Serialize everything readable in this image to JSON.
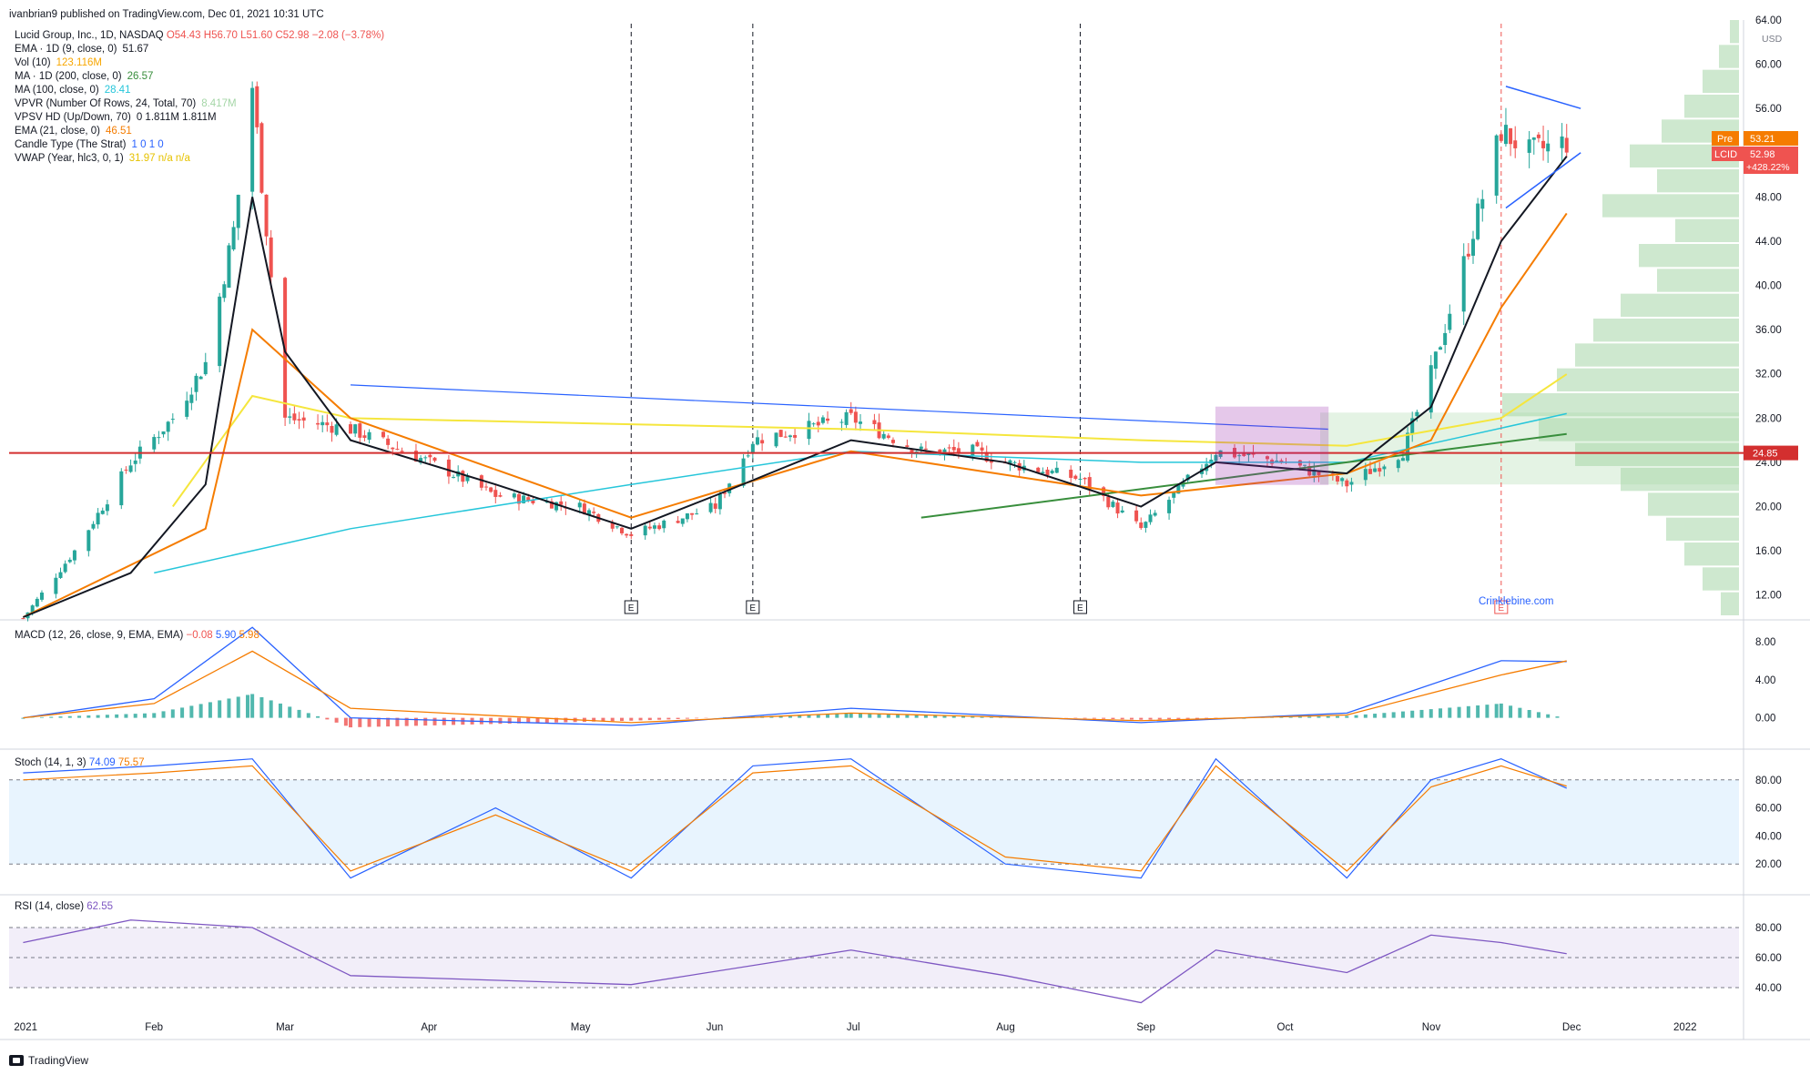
{
  "header": {
    "publisher_line": "ivanbrian9 published on TradingView.com, Dec 01, 2021 10:31 UTC"
  },
  "legend": {
    "symbol_line": {
      "label": "Lucid Group, Inc., 1D, NASDAQ",
      "o": "O54.43",
      "h": "H56.70",
      "l": "L51.60",
      "c": "C52.98",
      "chg": "−2.08 (−3.78%)"
    },
    "lines": [
      {
        "label": "EMA · 1D (9, close, 0)",
        "value": "51.67",
        "color": "#131722"
      },
      {
        "label": "Vol (10)",
        "value": "123.116M",
        "color": "#f7a600"
      },
      {
        "label": "MA · 1D (200, close, 0)",
        "value": "26.57",
        "color": "#388e3c"
      },
      {
        "label": "MA (100, close, 0)",
        "value": "28.41",
        "color": "#26c6da"
      },
      {
        "label": "VPVR (Number Of Rows, 24, Total, 70)",
        "value": "8.417M",
        "color": "#a5d6a7"
      },
      {
        "label": "VPSV HD (Up/Down, 70)",
        "value": "0  1.811M  1.811M",
        "color": "#131722"
      },
      {
        "label": "EMA (21, close, 0)",
        "value": "46.51",
        "color": "#f57c00"
      },
      {
        "label": "Candle Type (The Strat)",
        "value": "1  0  1  0",
        "color": "#2962ff"
      },
      {
        "label": "VWAP (Year, hlc3, 0, 1)",
        "value": "31.97  n/a  n/a",
        "color": "#e6c200"
      }
    ]
  },
  "price_scale": {
    "currency": "USD",
    "ticks": [
      "64.00",
      "60.00",
      "56.00",
      "52.00",
      "48.00",
      "44.00",
      "40.00",
      "36.00",
      "32.00",
      "28.00",
      "24.00",
      "20.00",
      "16.00",
      "12.00"
    ],
    "horizontal_level_label": "24.85",
    "pre_label": "Pre",
    "pre_value": "53.21",
    "symbol_tag": "LCID",
    "last_value": "52.98",
    "pct_change": "+428.22%"
  },
  "time_axis": {
    "labels": [
      "2021",
      "Feb",
      "Mar",
      "Apr",
      "May",
      "Jun",
      "Jul",
      "Aug",
      "Sep",
      "Oct",
      "Nov",
      "Dec",
      "2022"
    ]
  },
  "earnings_marker": "E",
  "watermark": "Crinklebine.com",
  "indicators": {
    "macd": {
      "title": "MACD (12, 26, close, 9, EMA, EMA)",
      "values": [
        "−0.08",
        "5.90",
        "5.98"
      ],
      "ticks": [
        "8.00",
        "4.00",
        "0.00"
      ]
    },
    "stoch": {
      "title": "Stoch (14, 1, 3)",
      "values": [
        "74.09",
        "75.57"
      ],
      "ticks": [
        "80.00",
        "60.00",
        "40.00",
        "20.00"
      ]
    },
    "rsi": {
      "title": "RSI (14, close)",
      "values": [
        "62.55"
      ],
      "ticks": [
        "80.00",
        "60.00",
        "40.00"
      ]
    }
  },
  "footer": {
    "brand": "TradingView"
  },
  "colors": {
    "up": "#26a69a",
    "down": "#ef5350",
    "ema9": "#131722",
    "ema21": "#f57c00",
    "ma100": "#26c6da",
    "ma200": "#388e3c",
    "vwap": "#f5e63d",
    "level": "#d32f2f",
    "trend": "#2962ff"
  },
  "chart_data": [
    {
      "type": "candlestick",
      "title": "Lucid Group, Inc., 1D, NASDAQ",
      "x_range": [
        "2021-01-01",
        "2021-12-31"
      ],
      "ylim": [
        10,
        64
      ],
      "series": [
        {
          "name": "Lucid Group, Inc., 1D, NASDAQ",
          "x": [
            "2021-01-04",
            "2021-01-15",
            "2021-01-27",
            "2021-02-05",
            "2021-02-12",
            "2021-02-18",
            "2021-02-22",
            "2021-03-01",
            "2021-03-15",
            "2021-04-01",
            "2021-04-15",
            "2021-05-03",
            "2021-05-14",
            "2021-06-01",
            "2021-06-09",
            "2021-06-30",
            "2021-07-15",
            "2021-07-26",
            "2021-08-02",
            "2021-08-18",
            "2021-08-31",
            "2021-09-16",
            "2021-10-01",
            "2021-10-14",
            "2021-10-26",
            "2021-11-01",
            "2021-11-08",
            "2021-11-16",
            "2021-11-22",
            "2021-11-30"
          ],
          "close": [
            9.9,
            16,
            24,
            28,
            33,
            45,
            58,
            28,
            27,
            24,
            21,
            20,
            17.5,
            20,
            26,
            28,
            25,
            25,
            24,
            22.5,
            18,
            25,
            24,
            22,
            25,
            32,
            42,
            54,
            52,
            52.98
          ]
        },
        {
          "name": "EMA (9, close, 0)",
          "x": [
            "2021-01-04",
            "2021-01-27",
            "2021-02-12",
            "2021-02-22",
            "2021-03-01",
            "2021-03-15",
            "2021-04-15",
            "2021-05-14",
            "2021-06-01",
            "2021-06-30",
            "2021-08-02",
            "2021-08-31",
            "2021-09-16",
            "2021-10-14",
            "2021-11-01",
            "2021-11-16",
            "2021-11-30"
          ],
          "values": [
            10,
            14,
            22,
            48,
            34,
            26,
            22,
            18,
            21,
            26,
            24,
            20,
            24,
            23,
            29,
            44,
            51.67
          ]
        },
        {
          "name": "EMA (21, close, 0)",
          "x": [
            "2021-01-04",
            "2021-02-12",
            "2021-02-22",
            "2021-03-15",
            "2021-05-14",
            "2021-06-30",
            "2021-08-31",
            "2021-10-14",
            "2021-11-01",
            "2021-11-16",
            "2021-11-30"
          ],
          "values": [
            10,
            18,
            36,
            28,
            19,
            25,
            21,
            23,
            26,
            38,
            46.51
          ]
        },
        {
          "name": "MA (100, close, 0)",
          "x": [
            "2021-02-01",
            "2021-03-15",
            "2021-05-14",
            "2021-06-30",
            "2021-08-31",
            "2021-10-14",
            "2021-11-30"
          ],
          "values": [
            14,
            18,
            22,
            25,
            24,
            24,
            28.41
          ]
        },
        {
          "name": "MA · 1D (200, close, 0)",
          "x": [
            "2021-07-15",
            "2021-10-14",
            "2021-11-30"
          ],
          "values": [
            19,
            24,
            26.57
          ]
        },
        {
          "name": "VWAP (Year, hlc3, 0, 1)",
          "x": [
            "2021-02-05",
            "2021-02-22",
            "2021-03-15",
            "2021-06-30",
            "2021-08-31",
            "2021-10-14",
            "2021-11-16",
            "2021-11-30"
          ],
          "values": [
            20,
            30,
            28,
            27,
            26,
            25.5,
            28,
            31.97
          ]
        }
      ],
      "horizontal_lines": [
        24.85
      ]
    },
    {
      "type": "line",
      "title": "MACD (12, 26, close, 9, EMA, EMA)",
      "ylim": [
        -3,
        10
      ],
      "x": [
        "2021-01-04",
        "2021-02-01",
        "2021-02-22",
        "2021-03-15",
        "2021-05-14",
        "2021-06-30",
        "2021-08-31",
        "2021-10-14",
        "2021-11-16",
        "2021-11-30"
      ],
      "series": [
        {
          "name": "MACD",
          "values": [
            0,
            2,
            9.5,
            0,
            -0.8,
            1,
            -0.5,
            0.5,
            6,
            5.9
          ]
        },
        {
          "name": "Signal",
          "values": [
            0,
            1.5,
            7,
            1,
            -0.5,
            0.5,
            -0.3,
            0.3,
            4.5,
            5.98
          ]
        }
      ]
    },
    {
      "type": "line",
      "title": "Stoch (14, 1, 3)",
      "ylim": [
        0,
        100
      ],
      "x": [
        "2021-01-04",
        "2021-02-01",
        "2021-02-22",
        "2021-03-15",
        "2021-04-15",
        "2021-05-14",
        "2021-06-09",
        "2021-06-30",
        "2021-08-02",
        "2021-08-31",
        "2021-09-16",
        "2021-10-14",
        "2021-11-01",
        "2021-11-16",
        "2021-11-30"
      ],
      "series": [
        {
          "name": "%K",
          "values": [
            85,
            90,
            95,
            10,
            60,
            10,
            90,
            95,
            20,
            10,
            95,
            10,
            80,
            95,
            74.09
          ]
        },
        {
          "name": "%D",
          "values": [
            80,
            85,
            90,
            15,
            55,
            15,
            85,
            90,
            25,
            15,
            90,
            15,
            75,
            90,
            75.57
          ]
        }
      ]
    },
    {
      "type": "line",
      "title": "RSI (14, close)",
      "ylim": [
        20,
        100
      ],
      "x": [
        "2021-01-04",
        "2021-01-27",
        "2021-02-22",
        "2021-03-15",
        "2021-05-14",
        "2021-06-30",
        "2021-08-02",
        "2021-08-31",
        "2021-09-16",
        "2021-10-14",
        "2021-11-01",
        "2021-11-16",
        "2021-11-30"
      ],
      "series": [
        {
          "name": "RSI",
          "values": [
            70,
            85,
            80,
            48,
            42,
            65,
            48,
            30,
            65,
            50,
            75,
            70,
            62.55
          ]
        }
      ]
    }
  ]
}
